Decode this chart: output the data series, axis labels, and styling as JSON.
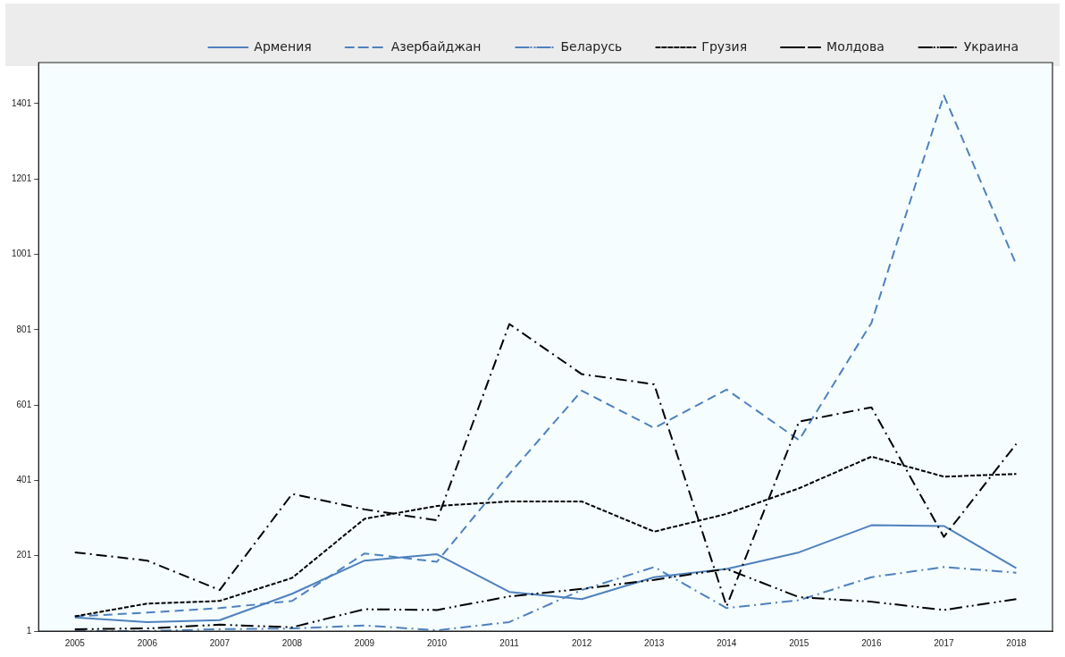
{
  "chart_data": {
    "type": "line",
    "categories": [
      "2005",
      "2006",
      "2007",
      "2008",
      "2009",
      "2010",
      "2011",
      "2012",
      "2013",
      "2014",
      "2015",
      "2016",
      "2017",
      "2018"
    ],
    "series": [
      {
        "name": "Армения",
        "color": "#4f81bd",
        "line_style": "solid",
        "values": [
          37,
          25,
          30,
          100,
          188,
          205,
          105,
          86,
          144,
          166,
          210,
          282,
          280,
          168
        ]
      },
      {
        "name": "Азербайджан",
        "color": "#4f81bd",
        "line_style": "dashed",
        "values": [
          40,
          50,
          62,
          81,
          207,
          185,
          418,
          639,
          540,
          642,
          508,
          819,
          1423,
          974
        ]
      },
      {
        "name": "Беларусь",
        "color": "#4f81bd",
        "line_style": "dashdot",
        "values": [
          1,
          1,
          6,
          8,
          16,
          3,
          25,
          110,
          171,
          62,
          83,
          144,
          171,
          156
        ]
      },
      {
        "name": "Грузия",
        "color": "#000000",
        "line_style": "dashed",
        "values": [
          40,
          74,
          81,
          142,
          299,
          333,
          345,
          345,
          265,
          312,
          380,
          464,
          411,
          418
        ]
      },
      {
        "name": "Молдова",
        "color": "#000000",
        "line_style": "dashdotdot",
        "values": [
          6,
          8,
          18,
          11,
          59,
          57,
          93,
          113,
          137,
          166,
          91,
          79,
          57,
          86
        ]
      },
      {
        "name": "Украина",
        "color": "#000000",
        "line_style": "dashdot",
        "values": [
          210,
          188,
          110,
          365,
          324,
          295,
          816,
          683,
          656,
          67,
          557,
          595,
          251,
          498
        ]
      }
    ],
    "ylim": [
      1,
      1510
    ],
    "yticks": [
      1,
      201,
      401,
      601,
      801,
      1001,
      1201,
      1401
    ],
    "grid": false,
    "legend": "top",
    "marker": "none"
  }
}
